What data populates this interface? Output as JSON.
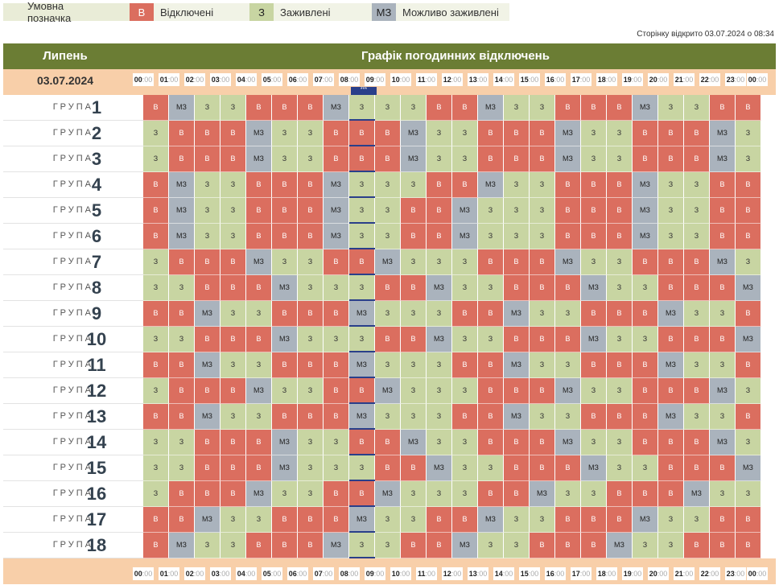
{
  "legend": {
    "title": "Умовна позначка",
    "items": [
      {
        "code": "В",
        "label": "Відключені",
        "color": "#db6e5f"
      },
      {
        "code": "З",
        "label": "Заживлені",
        "color": "#c8d5a2"
      },
      {
        "code": "МЗ",
        "label": "Можливо заживлені",
        "color": "#aab3bd"
      }
    ]
  },
  "page_opened": "Сторінку відкрито 03.07.2024 о 08:34",
  "header": {
    "month": "Липень",
    "title": "Графік погодинних відключень"
  },
  "date": "03.07.2024",
  "current_marker": "***",
  "hours": [
    "00",
    "01",
    "02",
    "03",
    "04",
    "05",
    "06",
    "07",
    "08",
    "09",
    "10",
    "11",
    "12",
    "13",
    "14",
    "15",
    "16",
    "17",
    "18",
    "19",
    "20",
    "21",
    "22",
    "23",
    "00"
  ],
  "minutes": ":00",
  "group_word": "ГРУПА",
  "groups": [
    {
      "number": "1",
      "cells": [
        "B",
        "MZ",
        "Z",
        "Z",
        "B",
        "B",
        "B",
        "MZ",
        "Z",
        "Z",
        "Z",
        "B",
        "B",
        "MZ",
        "Z",
        "Z",
        "B",
        "B",
        "B",
        "MZ",
        "Z",
        "Z",
        "B",
        "B"
      ]
    },
    {
      "number": "2",
      "cells": [
        "Z",
        "B",
        "B",
        "B",
        "MZ",
        "Z",
        "Z",
        "B",
        "B",
        "B",
        "MZ",
        "Z",
        "Z",
        "B",
        "B",
        "B",
        "MZ",
        "Z",
        "Z",
        "B",
        "B",
        "B",
        "MZ",
        "Z"
      ]
    },
    {
      "number": "3",
      "cells": [
        "Z",
        "B",
        "B",
        "B",
        "MZ",
        "Z",
        "Z",
        "B",
        "B",
        "B",
        "MZ",
        "Z",
        "Z",
        "B",
        "B",
        "B",
        "MZ",
        "Z",
        "Z",
        "B",
        "B",
        "B",
        "MZ",
        "Z"
      ]
    },
    {
      "number": "4",
      "cells": [
        "B",
        "MZ",
        "Z",
        "Z",
        "B",
        "B",
        "B",
        "MZ",
        "Z",
        "Z",
        "Z",
        "B",
        "B",
        "MZ",
        "Z",
        "Z",
        "B",
        "B",
        "B",
        "MZ",
        "Z",
        "Z",
        "B",
        "B"
      ]
    },
    {
      "number": "5",
      "cells": [
        "B",
        "MZ",
        "Z",
        "Z",
        "B",
        "B",
        "B",
        "MZ",
        "Z",
        "Z",
        "B",
        "B",
        "MZ",
        "Z",
        "Z",
        "Z",
        "B",
        "B",
        "B",
        "MZ",
        "Z",
        "Z",
        "B",
        "B"
      ]
    },
    {
      "number": "6",
      "cells": [
        "B",
        "MZ",
        "Z",
        "Z",
        "B",
        "B",
        "B",
        "MZ",
        "Z",
        "Z",
        "B",
        "B",
        "MZ",
        "Z",
        "Z",
        "Z",
        "B",
        "B",
        "B",
        "MZ",
        "Z",
        "Z",
        "B",
        "B"
      ]
    },
    {
      "number": "7",
      "cells": [
        "Z",
        "B",
        "B",
        "B",
        "MZ",
        "Z",
        "Z",
        "B",
        "B",
        "MZ",
        "Z",
        "Z",
        "Z",
        "B",
        "B",
        "B",
        "MZ",
        "Z",
        "Z",
        "B",
        "B",
        "B",
        "MZ",
        "Z"
      ]
    },
    {
      "number": "8",
      "cells": [
        "Z",
        "Z",
        "B",
        "B",
        "B",
        "MZ",
        "Z",
        "Z",
        "Z",
        "B",
        "B",
        "MZ",
        "Z",
        "Z",
        "B",
        "B",
        "B",
        "MZ",
        "Z",
        "Z",
        "B",
        "B",
        "B",
        "MZ"
      ]
    },
    {
      "number": "9",
      "cells": [
        "B",
        "B",
        "MZ",
        "Z",
        "Z",
        "B",
        "B",
        "B",
        "MZ",
        "Z",
        "Z",
        "Z",
        "B",
        "B",
        "MZ",
        "Z",
        "Z",
        "B",
        "B",
        "B",
        "MZ",
        "Z",
        "Z",
        "B"
      ]
    },
    {
      "number": "10",
      "cells": [
        "Z",
        "Z",
        "B",
        "B",
        "B",
        "MZ",
        "Z",
        "Z",
        "Z",
        "B",
        "B",
        "MZ",
        "Z",
        "Z",
        "B",
        "B",
        "B",
        "MZ",
        "Z",
        "Z",
        "B",
        "B",
        "B",
        "MZ"
      ]
    },
    {
      "number": "11",
      "cells": [
        "B",
        "B",
        "MZ",
        "Z",
        "Z",
        "B",
        "B",
        "B",
        "MZ",
        "Z",
        "Z",
        "Z",
        "B",
        "B",
        "MZ",
        "Z",
        "Z",
        "B",
        "B",
        "B",
        "MZ",
        "Z",
        "Z",
        "B"
      ]
    },
    {
      "number": "12",
      "cells": [
        "Z",
        "B",
        "B",
        "B",
        "MZ",
        "Z",
        "Z",
        "B",
        "B",
        "MZ",
        "Z",
        "Z",
        "Z",
        "B",
        "B",
        "B",
        "MZ",
        "Z",
        "Z",
        "B",
        "B",
        "B",
        "MZ",
        "Z"
      ]
    },
    {
      "number": "13",
      "cells": [
        "B",
        "B",
        "MZ",
        "Z",
        "Z",
        "B",
        "B",
        "B",
        "MZ",
        "Z",
        "Z",
        "Z",
        "B",
        "B",
        "MZ",
        "Z",
        "Z",
        "B",
        "B",
        "B",
        "MZ",
        "Z",
        "Z",
        "B"
      ]
    },
    {
      "number": "14",
      "cells": [
        "Z",
        "Z",
        "B",
        "B",
        "B",
        "MZ",
        "Z",
        "Z",
        "B",
        "B",
        "MZ",
        "Z",
        "Z",
        "B",
        "B",
        "B",
        "MZ",
        "Z",
        "Z",
        "B",
        "B",
        "B",
        "MZ",
        "Z"
      ]
    },
    {
      "number": "15",
      "cells": [
        "Z",
        "Z",
        "B",
        "B",
        "B",
        "MZ",
        "Z",
        "Z",
        "Z",
        "B",
        "B",
        "MZ",
        "Z",
        "Z",
        "B",
        "B",
        "B",
        "MZ",
        "Z",
        "Z",
        "B",
        "B",
        "B",
        "MZ"
      ]
    },
    {
      "number": "16",
      "cells": [
        "Z",
        "B",
        "B",
        "B",
        "MZ",
        "Z",
        "Z",
        "B",
        "B",
        "MZ",
        "Z",
        "Z",
        "Z",
        "B",
        "B",
        "MZ",
        "Z",
        "Z",
        "B",
        "B",
        "B",
        "MZ",
        "Z",
        "Z"
      ]
    },
    {
      "number": "17",
      "cells": [
        "B",
        "B",
        "MZ",
        "Z",
        "Z",
        "B",
        "B",
        "B",
        "MZ",
        "Z",
        "Z",
        "B",
        "B",
        "MZ",
        "Z",
        "Z",
        "B",
        "B",
        "B",
        "MZ",
        "Z",
        "Z",
        "B",
        "B"
      ]
    },
    {
      "number": "18",
      "cells": [
        "B",
        "MZ",
        "Z",
        "Z",
        "B",
        "B",
        "B",
        "MZ",
        "Z",
        "Z",
        "B",
        "B",
        "MZ",
        "Z",
        "Z",
        "B",
        "B",
        "B",
        "MZ",
        "Z",
        "Z",
        "B",
        "B",
        "B"
      ]
    }
  ],
  "state_labels": {
    "B": "В",
    "Z": "З",
    "MZ": "МЗ"
  }
}
